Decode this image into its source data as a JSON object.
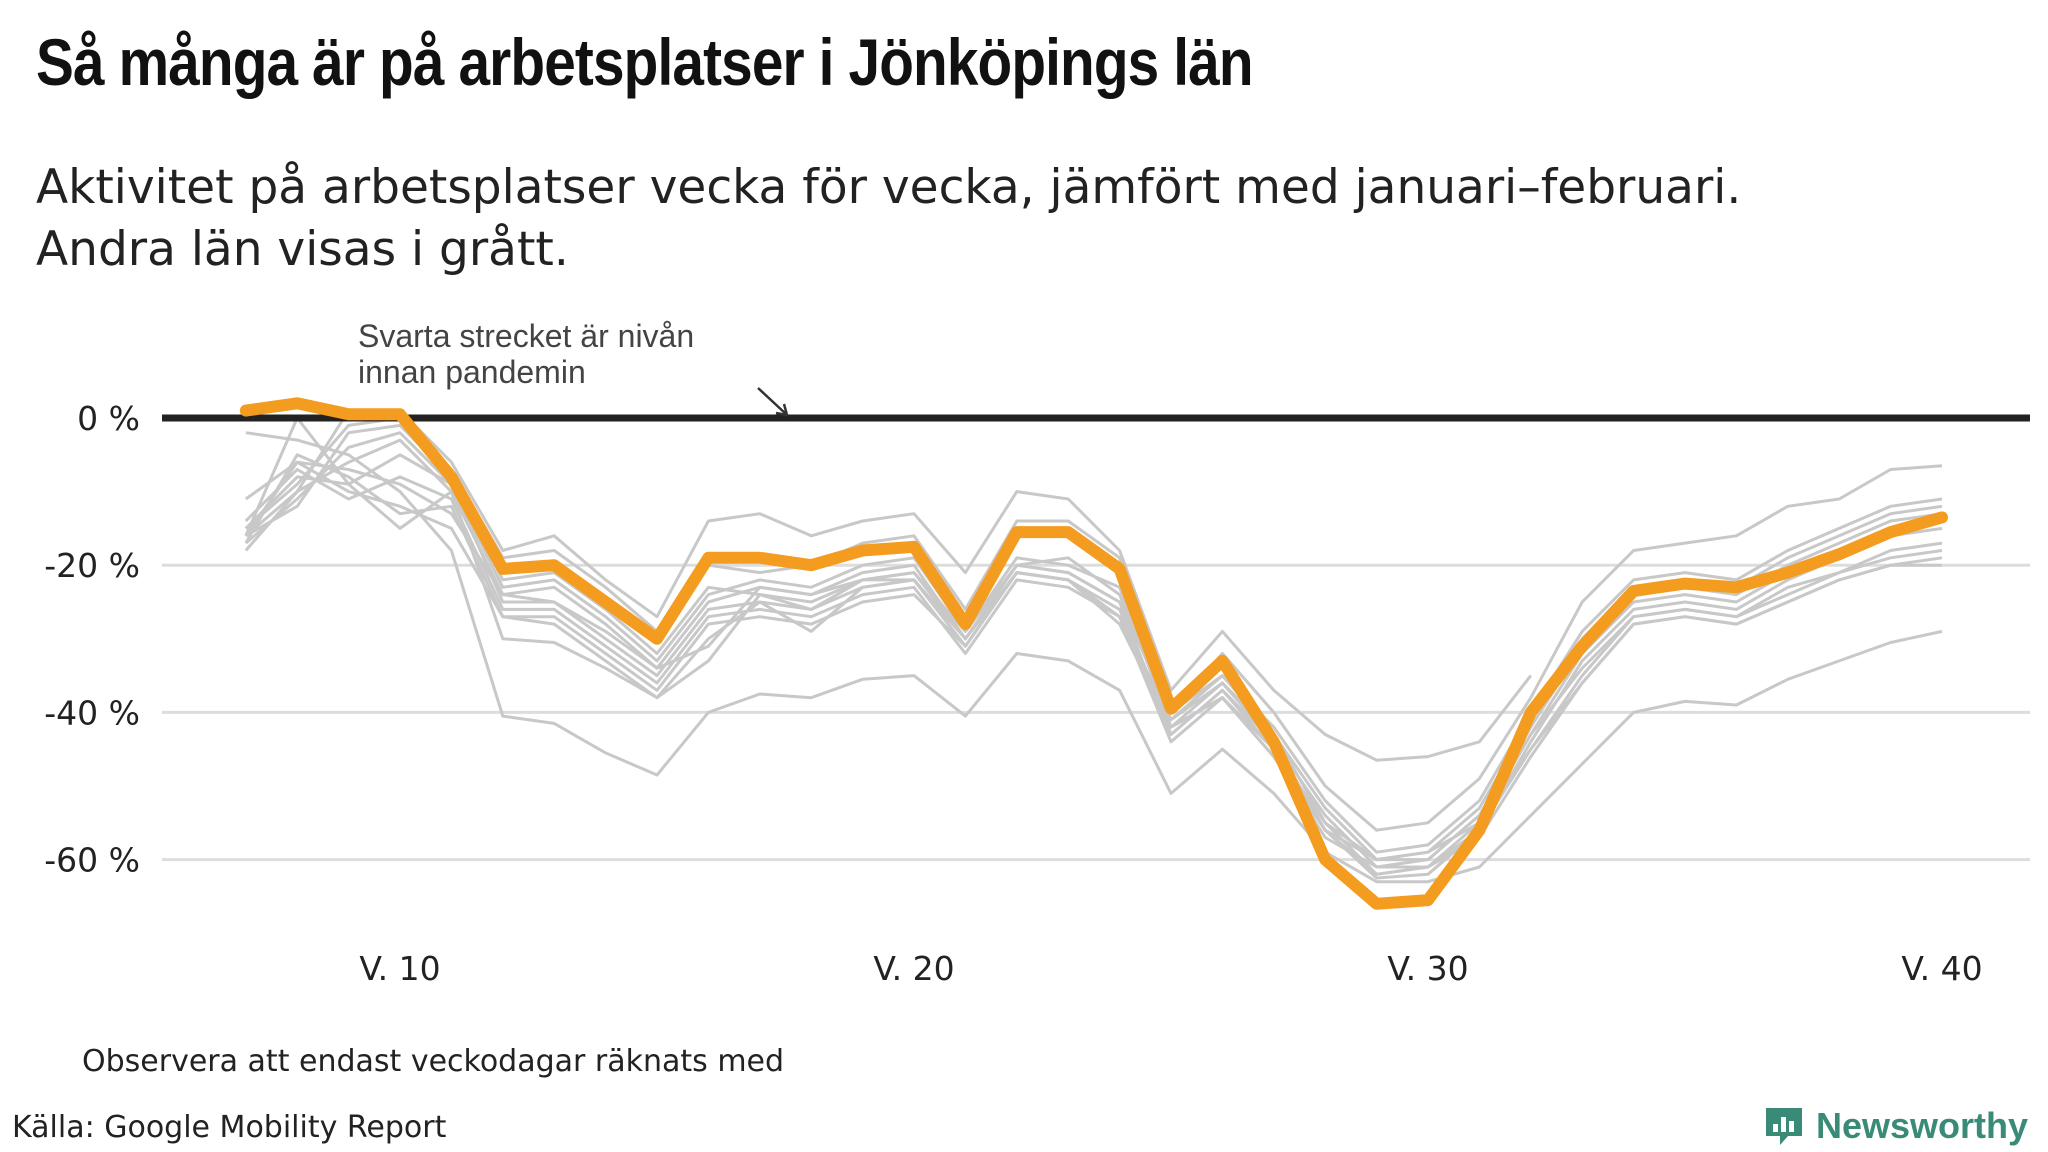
{
  "title": "Så många är på arbetsplatser i Jönköpings län",
  "subtitle_line1": "Aktivitet på arbetsplatser vecka för vecka, jämfört med januari–februari.",
  "subtitle_line2": "Andra län visas i grått.",
  "note": "Observera att endast veckodagar räknats med",
  "source": "Källa: Google Mobility Report",
  "brand": "Newsworthy",
  "colors": {
    "highlight": "#f39c1f",
    "other": "#c8c8c8",
    "baseline": "#222222",
    "grid": "#dddddd",
    "brand": "#3a8a78"
  },
  "chart_data": {
    "type": "line",
    "annotation": {
      "line1": "Svarta strecket är nivån",
      "line2": "innan pandemin"
    },
    "xlim": [
      5.5,
      41.5
    ],
    "ylim": [
      -72,
      5
    ],
    "yticks": [
      0,
      -20,
      -40,
      -60
    ],
    "ytick_labels": [
      "0 %",
      "-20 %",
      "-40 %",
      "-60 %"
    ],
    "xticks": [
      10,
      20,
      30,
      40
    ],
    "xtick_labels": [
      "V. 10",
      "V. 20",
      "V. 30",
      "V. 40"
    ],
    "highlight": {
      "x": [
        7,
        8,
        9,
        10,
        11,
        12,
        13,
        14,
        15,
        16,
        17,
        18,
        19,
        20,
        21,
        22,
        23,
        24,
        25,
        26,
        27,
        28,
        29,
        30,
        31,
        32,
        33,
        34,
        35,
        36,
        37,
        38,
        39,
        40
      ],
      "values": [
        1,
        2,
        0.5,
        0.5,
        -8,
        -20.5,
        -20,
        -25,
        -30,
        -19,
        -19,
        -20,
        -18,
        -17.5,
        -28,
        -15.5,
        -15.5,
        -20.5,
        -39.5,
        -33,
        -44,
        -60,
        -66,
        -65.5,
        -56,
        -40,
        -31,
        -23.5,
        -22.5,
        -23,
        -21,
        -18.5,
        -15.5,
        -13.5
      ]
    },
    "others": [
      [
        -16,
        -10,
        1,
        1,
        -6,
        -18,
        -16,
        -22,
        -27,
        -14,
        -13,
        -16,
        -14,
        -13,
        -21,
        -10,
        -11,
        -18,
        -37,
        -29,
        -37,
        -43,
        -46.5,
        -46,
        -44,
        -35,
        null,
        null,
        null,
        null,
        null,
        null,
        null,
        null
      ],
      [
        -15,
        -9,
        -1,
        0,
        -7,
        -19,
        -18,
        -23,
        -29,
        -20,
        -21,
        -20,
        -17,
        -16,
        -26,
        -14,
        -14,
        -19,
        -40,
        -32,
        -40,
        -50,
        -56,
        -55,
        -49,
        -38,
        -25,
        -18,
        -17,
        -16,
        -12,
        -11,
        -7,
        -6.5
      ],
      [
        -16,
        -12,
        -2,
        -1,
        -8,
        -22,
        -21,
        -26,
        -32,
        -23,
        -24,
        -25,
        -22,
        -21,
        -30,
        -20,
        -19,
        -24,
        -41,
        -35,
        -42,
        -52,
        -59,
        -58,
        -52,
        -40,
        -29,
        -22,
        -21,
        -22,
        -18,
        -15,
        -12,
        -11
      ],
      [
        -17,
        -11,
        -4,
        -2,
        -9,
        -23,
        -22,
        -27,
        -33,
        -24,
        -22,
        -23,
        -20,
        -19,
        -29,
        -19,
        -20,
        -23,
        -42,
        -36,
        -43,
        -53,
        -60,
        -59,
        -53,
        -41,
        -30,
        -23,
        -22,
        -23,
        -19,
        -16,
        -13,
        -12
      ],
      [
        -18,
        -10,
        -6,
        -3,
        -10,
        -24,
        -23,
        -28,
        -34,
        -25,
        -23,
        -24,
        -21,
        -20,
        -30,
        -20,
        -21,
        -25,
        -43,
        -37,
        -44,
        -54,
        -61,
        -60,
        -54,
        -42,
        -31,
        -24,
        -23,
        -24,
        -20,
        -17,
        -14,
        -13
      ],
      [
        -15,
        -8,
        -9,
        -5,
        -9,
        -25,
        -25,
        -30,
        -35,
        -26,
        -25,
        -26,
        -23,
        -22,
        -31,
        -21,
        -22,
        -26,
        -42,
        -38,
        -45,
        -55,
        -62,
        -61,
        -55,
        -43,
        -32,
        -25,
        -24,
        -25,
        -21,
        -18,
        -15,
        -14
      ],
      [
        -14,
        -7,
        -11,
        -8,
        -11,
        -26,
        -26,
        -31,
        -36,
        -27,
        -26,
        -27,
        -24,
        -23,
        -32,
        -22,
        -23,
        -27,
        -44,
        -38,
        -46,
        -56,
        -62.5,
        -62,
        -56,
        -44,
        -33,
        -26,
        -25,
        -26,
        -22,
        -19,
        -16,
        -15
      ],
      [
        -11,
        -6,
        -10,
        -12,
        -15,
        -27,
        -27,
        -32,
        -37,
        -28,
        -27,
        -28,
        -25,
        -24,
        -31,
        -21,
        -22,
        -27,
        -43,
        -37,
        -45,
        -56,
        -60,
        -60,
        -54,
        -43,
        -34,
        -27,
        -26,
        -27,
        -24,
        -21,
        -18,
        -17
      ],
      [
        -16,
        0,
        -9,
        -15,
        -10,
        -30,
        -30.5,
        -34,
        -38,
        -30,
        -25,
        -29,
        -23,
        -22,
        -31,
        -21,
        -22,
        -28,
        -42,
        -38,
        -46,
        -57,
        -61,
        -61,
        -56,
        -45,
        -36,
        -28,
        -27,
        -28,
        -25,
        -22,
        -20,
        -19
      ],
      [
        -17,
        -5,
        -8,
        -13,
        -12,
        -27,
        -28,
        -33,
        -38,
        -33,
        -24,
        -26,
        -22,
        -22,
        -30,
        -21,
        -22,
        -27,
        -41,
        -36,
        -44,
        -56,
        -62,
        -61,
        -57,
        -46,
        -36,
        -28,
        -27,
        -28,
        -25,
        -22,
        -20,
        -20
      ],
      [
        -16,
        -6,
        -7,
        -9,
        -13,
        -24,
        -25,
        -29,
        -34,
        -31,
        -23,
        -24,
        -22,
        -21,
        -29,
        -20,
        -21,
        -25,
        -40,
        -35,
        -43,
        -55,
        -60,
        -59,
        -55,
        -45,
        -35,
        -27,
        -26,
        -27,
        -23,
        -21,
        -19,
        -18
      ],
      [
        -2,
        -3,
        -5,
        -10,
        -18,
        -40.5,
        -41.5,
        -45.5,
        -48.5,
        -40,
        -37.5,
        -38,
        -35.5,
        -35,
        -40.5,
        -32,
        -33,
        -37,
        -51,
        -45,
        -51,
        -59,
        -63,
        -63,
        -61,
        -54,
        -47,
        -40,
        -38.5,
        -39,
        -35.5,
        -33,
        -30.5,
        -29
      ]
    ]
  }
}
